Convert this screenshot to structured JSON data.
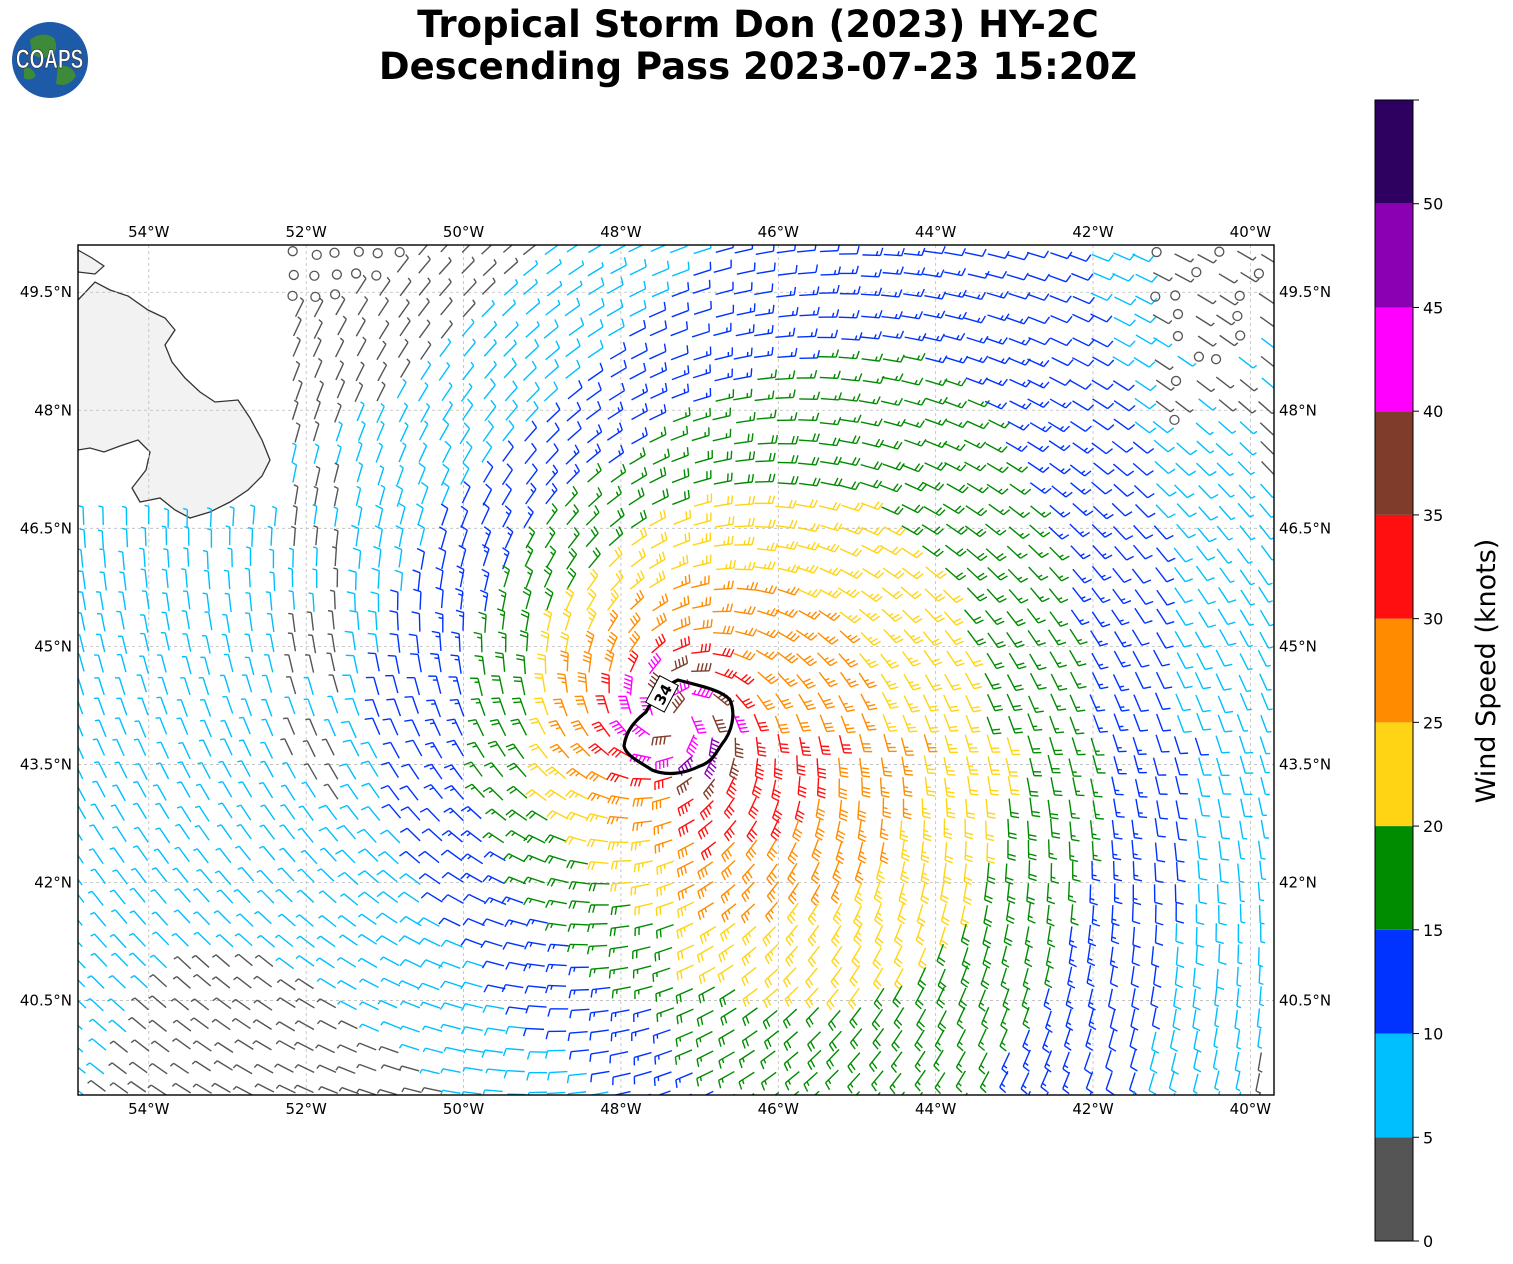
{
  "title": {
    "line1": "Tropical Storm Don (2023) HY-2C",
    "line2": "Descending Pass 2023-07-23 15:20Z"
  },
  "logo": {
    "text": "COAPS",
    "icon": "globe-logo-icon"
  },
  "colorbar": {
    "label": "Wind Speed (knots)",
    "bins": [
      {
        "min": 0,
        "max": 5,
        "color": "#555555"
      },
      {
        "min": 5,
        "max": 10,
        "color": "#00bfff"
      },
      {
        "min": 10,
        "max": 15,
        "color": "#0033ff"
      },
      {
        "min": 15,
        "max": 20,
        "color": "#008c00"
      },
      {
        "min": 20,
        "max": 25,
        "color": "#ffd414"
      },
      {
        "min": 25,
        "max": 30,
        "color": "#ff8c00"
      },
      {
        "min": 30,
        "max": 35,
        "color": "#ff0f0f"
      },
      {
        "min": 35,
        "max": 40,
        "color": "#803c2a"
      },
      {
        "min": 40,
        "max": 45,
        "color": "#ff00ff"
      },
      {
        "min": 45,
        "max": 50,
        "color": "#8c00b4"
      },
      {
        "min": 50,
        "max": 55,
        "color": "#2e0060"
      }
    ],
    "tick_labels": [
      "0",
      "5",
      "10",
      "15",
      "20",
      "25",
      "30",
      "35",
      "40",
      "45",
      "50"
    ]
  },
  "map": {
    "lon_range": [
      -54.9,
      -39.7
    ],
    "lat_range": [
      39.3,
      50.1
    ],
    "lon_ticks": [
      -54,
      -52,
      -50,
      -48,
      -46,
      -44,
      -42,
      -40
    ],
    "lon_tick_labels": [
      "54°W",
      "52°W",
      "50°W",
      "48°W",
      "46°W",
      "44°W",
      "42°W",
      "40°W"
    ],
    "lat_ticks": [
      40.5,
      42,
      43.5,
      45,
      46.5,
      48,
      49.5
    ],
    "lat_tick_labels": [
      "40.5°N",
      "42°N",
      "43.5°N",
      "45°N",
      "46.5°N",
      "48°N",
      "49.5°N"
    ],
    "gridlines": true,
    "storm_center": {
      "lon": -47.3,
      "lat": 44.1
    },
    "contour_label": "34",
    "land": "Newfoundland coastline (top-left)"
  }
}
